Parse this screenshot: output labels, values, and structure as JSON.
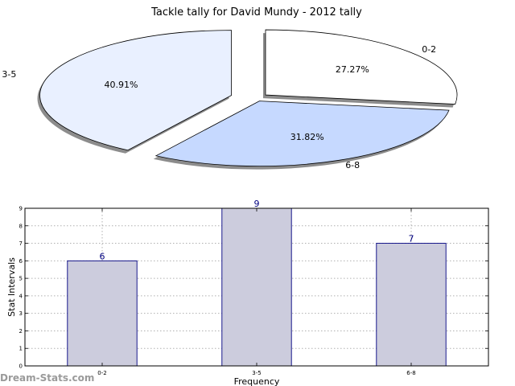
{
  "chart_data": [
    {
      "type": "pie",
      "title": "Tackle tally for David Mundy - 2012 tally",
      "labels": [
        "0-2",
        "6-8",
        "3-5"
      ],
      "values": [
        27.27,
        31.82,
        40.91
      ],
      "value_labels": [
        "27.27%",
        "31.82%",
        "40.91%"
      ],
      "colors": [
        "#ffffff",
        "#c6d9ff",
        "#e9f0ff"
      ],
      "exploded": true,
      "shadow": true
    },
    {
      "type": "bar",
      "categories": [
        "0-2",
        "3-5",
        "6-8"
      ],
      "values": [
        6,
        9,
        7
      ],
      "value_labels": [
        "6",
        "9",
        "7"
      ],
      "xlabel": "Frequency",
      "ylabel": "Stat Intervals",
      "ylim": [
        0,
        9
      ],
      "yticks": [
        "0",
        "1",
        "2",
        "3",
        "4",
        "5",
        "6",
        "7",
        "8",
        "9"
      ],
      "grid": true,
      "bar_color": "#ccccdd",
      "edge_color": "#000080",
      "label_color": "#000080"
    }
  ],
  "watermark": "Dream-Stats.com"
}
